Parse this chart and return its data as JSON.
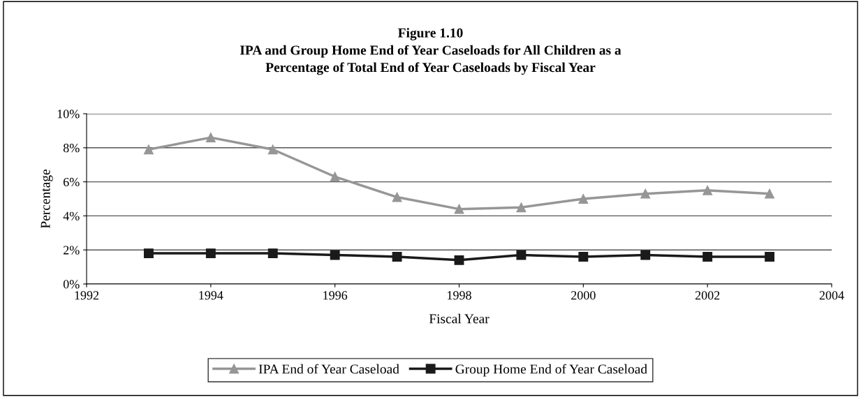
{
  "chart_data": {
    "type": "line",
    "title": "Figure 1.10\nIPA and Group Home End of Year Caseloads for All Children as a\nPercentage of Total End of Year Caseloads by Fiscal Year",
    "xlabel": "Fiscal Year",
    "ylabel": "Percentage",
    "x": [
      1993,
      1994,
      1995,
      1996,
      1997,
      1998,
      1999,
      2000,
      2001,
      2002,
      2003
    ],
    "series": [
      {
        "name": "IPA End of Year Caseload",
        "color": "#969696",
        "marker": "triangle",
        "values": [
          7.9,
          8.6,
          7.9,
          6.3,
          5.1,
          4.4,
          4.5,
          5.0,
          5.3,
          5.5,
          5.3
        ]
      },
      {
        "name": "Group Home End of Year Caseload",
        "color": "#1a1a1a",
        "marker": "square",
        "values": [
          1.8,
          1.8,
          1.8,
          1.7,
          1.6,
          1.4,
          1.7,
          1.6,
          1.7,
          1.6,
          1.6
        ]
      }
    ],
    "xlim": [
      1992,
      2004
    ],
    "xticks": [
      1992,
      1994,
      1996,
      1998,
      2000,
      2002,
      2004
    ],
    "ylim": [
      0,
      10
    ],
    "yticks": [
      {
        "value": 0,
        "label": "0%"
      },
      {
        "value": 2,
        "label": "2%"
      },
      {
        "value": 4,
        "label": "4%"
      },
      {
        "value": 6,
        "label": "6%"
      },
      {
        "value": 8,
        "label": "8%"
      },
      {
        "value": 10,
        "label": "10%"
      }
    ],
    "grid": "y",
    "legend": "bottom",
    "line_style": "solid"
  }
}
